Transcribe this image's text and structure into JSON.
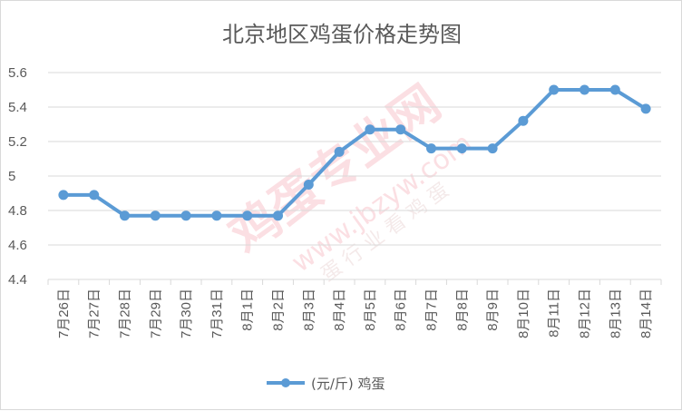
{
  "chart_data": {
    "type": "line",
    "title": "北京地区鸡蛋价格走势图",
    "xlabel": "",
    "ylabel": "",
    "categories": [
      "7月26日",
      "7月27日",
      "7月28日",
      "7月29日",
      "7月30日",
      "7月31日",
      "8月1日",
      "8月2日",
      "8月3日",
      "8月4日",
      "8月5日",
      "8月6日",
      "8月7日",
      "8月8日",
      "8月9日",
      "8月10日",
      "8月11日",
      "8月12日",
      "8月13日",
      "8月14日"
    ],
    "series": [
      {
        "name": "(元/斤) 鸡蛋",
        "values": [
          4.89,
          4.89,
          4.77,
          4.77,
          4.77,
          4.77,
          4.77,
          4.77,
          4.95,
          5.14,
          5.27,
          5.27,
          5.16,
          5.16,
          5.16,
          5.32,
          5.5,
          5.5,
          5.5,
          5.39
        ]
      }
    ],
    "ylim": [
      4.4,
      5.6
    ],
    "yticks": [
      "4.4",
      "4.6",
      "4.8",
      "5",
      "5.2",
      "5.4",
      "5.6"
    ],
    "grid": true,
    "legend": "bottom",
    "colors": {
      "series": "#5b9bd5",
      "grid": "#d9d9d9",
      "text": "#595959"
    }
  },
  "watermark": {
    "main": "鸡蛋专业网",
    "url": "www.jbzyw.com",
    "side": "蛋 行 业 看 鸡 蛋"
  }
}
